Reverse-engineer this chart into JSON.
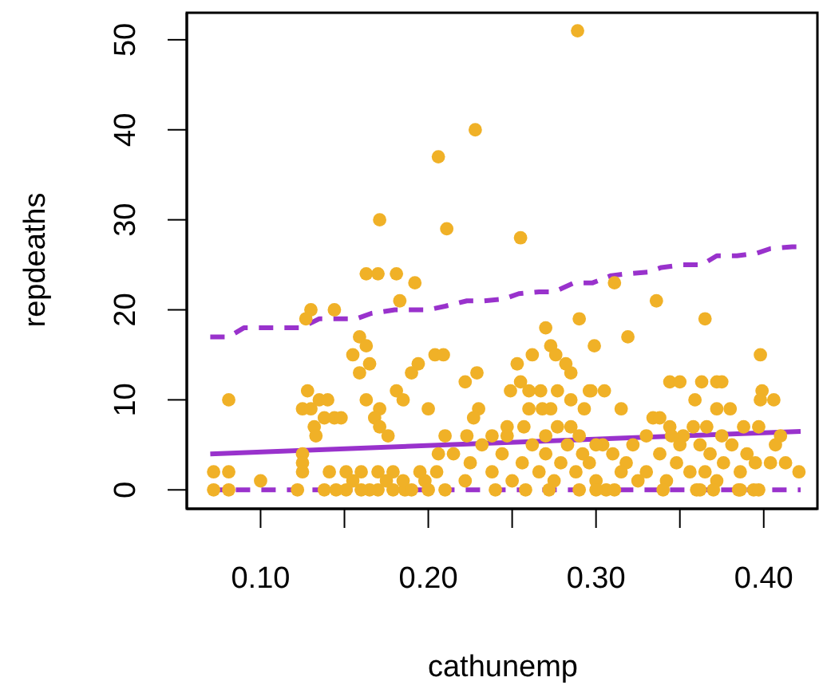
{
  "chart_data": {
    "type": "scatter",
    "xlabel": "cathunemp",
    "ylabel": "repdeaths",
    "xlim": [
      0.056,
      0.432
    ],
    "ylim": [
      -2.1,
      53
    ],
    "xticks": [
      {
        "value": 0.1,
        "label": "0.10"
      },
      {
        "value": 0.15,
        "label": null
      },
      {
        "value": 0.2,
        "label": "0.20"
      },
      {
        "value": 0.25,
        "label": null
      },
      {
        "value": 0.3,
        "label": "0.30"
      },
      {
        "value": 0.35,
        "label": null
      },
      {
        "value": 0.4,
        "label": "0.40"
      }
    ],
    "yticks": [
      0,
      10,
      20,
      30,
      40,
      50
    ],
    "grid": false,
    "series": [
      {
        "marker": "circle",
        "color": "#f0b127",
        "x": [
          0.289,
          0.228,
          0.206,
          0.171,
          0.211,
          0.255,
          0.163,
          0.17,
          0.13,
          0.127,
          0.144,
          0.159,
          0.163,
          0.155,
          0.165,
          0.159,
          0.081,
          0.128,
          0.135,
          0.14,
          0.125,
          0.13,
          0.144,
          0.148,
          0.132,
          0.133,
          0.138,
          0.163,
          0.171,
          0.168,
          0.171,
          0.176,
          0.181,
          0.072,
          0.081,
          0.072,
          0.081,
          0.1,
          0.122,
          0.125,
          0.125,
          0.125,
          0.141,
          0.151,
          0.16,
          0.17,
          0.179,
          0.138,
          0.151,
          0.17,
          0.181,
          0.192,
          0.183,
          0.27,
          0.29,
          0.299,
          0.204,
          0.209,
          0.262,
          0.273,
          0.276,
          0.282,
          0.285,
          0.194,
          0.19,
          0.229,
          0.222,
          0.253,
          0.255,
          0.185,
          0.2,
          0.23,
          0.227,
          0.249,
          0.26,
          0.267,
          0.277,
          0.285,
          0.297,
          0.26,
          0.268,
          0.273,
          0.293,
          0.247,
          0.257,
          0.21,
          0.206,
          0.223,
          0.238,
          0.277,
          0.285,
          0.215,
          0.225,
          0.232,
          0.238,
          0.244,
          0.25,
          0.256,
          0.262,
          0.266,
          0.27,
          0.275,
          0.279,
          0.283,
          0.288,
          0.292,
          0.296,
          0.3,
          0.304,
          0.21,
          0.222,
          0.24,
          0.258,
          0.272,
          0.29,
          0.306,
          0.198,
          0.186,
          0.247,
          0.27,
          0.29,
          0.179,
          0.311,
          0.336,
          0.365,
          0.319,
          0.398,
          0.344,
          0.35,
          0.363,
          0.372,
          0.375,
          0.296,
          0.305,
          0.399,
          0.398,
          0.406,
          0.359,
          0.315,
          0.334,
          0.338,
          0.372,
          0.38,
          0.344,
          0.358,
          0.366,
          0.388,
          0.397,
          0.41,
          0.407,
          0.404,
          0.413,
          0.421,
          0.3,
          0.31,
          0.318,
          0.322,
          0.33,
          0.338,
          0.342,
          0.348,
          0.352,
          0.356,
          0.362,
          0.368,
          0.372,
          0.376,
          0.381,
          0.386,
          0.39,
          0.394,
          0.3,
          0.315,
          0.325,
          0.34,
          0.35,
          0.365,
          0.37,
          0.385,
          0.395,
          0.36,
          0.375,
          0.33,
          0.345,
          0.311,
          0.362,
          0.386,
          0.397,
          0.145,
          0.155,
          0.165,
          0.175,
          0.16,
          0.185,
          0.19,
          0.2,
          0.205,
          0.195
        ],
        "values": [
          51,
          40,
          37,
          30,
          29,
          28,
          24,
          24,
          20,
          19,
          20,
          17,
          16,
          15,
          14,
          13,
          10,
          11,
          10,
          10,
          9,
          9,
          8,
          8,
          7,
          6,
          8,
          10,
          9,
          8,
          7,
          6,
          11,
          2,
          2,
          0,
          0,
          1,
          0,
          4,
          3,
          2,
          2,
          2,
          2,
          2,
          2,
          0,
          0,
          0,
          24,
          23,
          21,
          18,
          19,
          16,
          15,
          15,
          15,
          16,
          15,
          14,
          13,
          14,
          13,
          13,
          12,
          14,
          12,
          10,
          9,
          9,
          8,
          11,
          11,
          11,
          11,
          10,
          11,
          9,
          9,
          9,
          9,
          7,
          7,
          6,
          4,
          6,
          6,
          7,
          7,
          4,
          3,
          5,
          2,
          4,
          1,
          3,
          5,
          2,
          4,
          1,
          3,
          5,
          2,
          4,
          3,
          1,
          5,
          0,
          1,
          0,
          0,
          0,
          0,
          0,
          1,
          0,
          6,
          6,
          6,
          0,
          23,
          21,
          19,
          17,
          15,
          12,
          12,
          12,
          12,
          12,
          11,
          11,
          11,
          10,
          10,
          10,
          9,
          8,
          8,
          9,
          9,
          7,
          7,
          7,
          7,
          7,
          6,
          5,
          3,
          3,
          2,
          5,
          4,
          3,
          5,
          2,
          4,
          1,
          3,
          6,
          2,
          5,
          4,
          1,
          3,
          5,
          2,
          4,
          0,
          0,
          2,
          1,
          0,
          5,
          2,
          0,
          0,
          3,
          0,
          6,
          6,
          6,
          0,
          0,
          0,
          0,
          0,
          1,
          0,
          1,
          0,
          1,
          0,
          0,
          2,
          2
        ]
      },
      {
        "type": "line",
        "color": "#9932cc",
        "line_style": "solid",
        "x": [
          0.07,
          0.422
        ],
        "values": [
          4,
          6.5
        ]
      },
      {
        "type": "line",
        "color": "#9932cc",
        "line_style": "dashed",
        "x": [
          0.07,
          0.081,
          0.09,
          0.124,
          0.135,
          0.157,
          0.166,
          0.18,
          0.2,
          0.21,
          0.223,
          0.233,
          0.245,
          0.254,
          0.266,
          0.275,
          0.287,
          0.298,
          0.309,
          0.318,
          0.331,
          0.339,
          0.351,
          0.363,
          0.372,
          0.384,
          0.396,
          0.404,
          0.417,
          0.422
        ],
        "values": [
          17,
          17,
          18,
          18,
          19,
          19,
          19.6,
          20,
          20,
          20.4,
          21,
          21,
          21.2,
          21.8,
          22,
          22,
          23,
          23,
          23.8,
          24,
          24.2,
          24.7,
          25,
          25,
          26,
          26,
          26.3,
          26.8,
          27,
          27
        ]
      },
      {
        "type": "line",
        "color": "#9932cc",
        "line_style": "dashed",
        "x": [
          0.07,
          0.422
        ],
        "values": [
          0,
          0
        ]
      }
    ]
  }
}
